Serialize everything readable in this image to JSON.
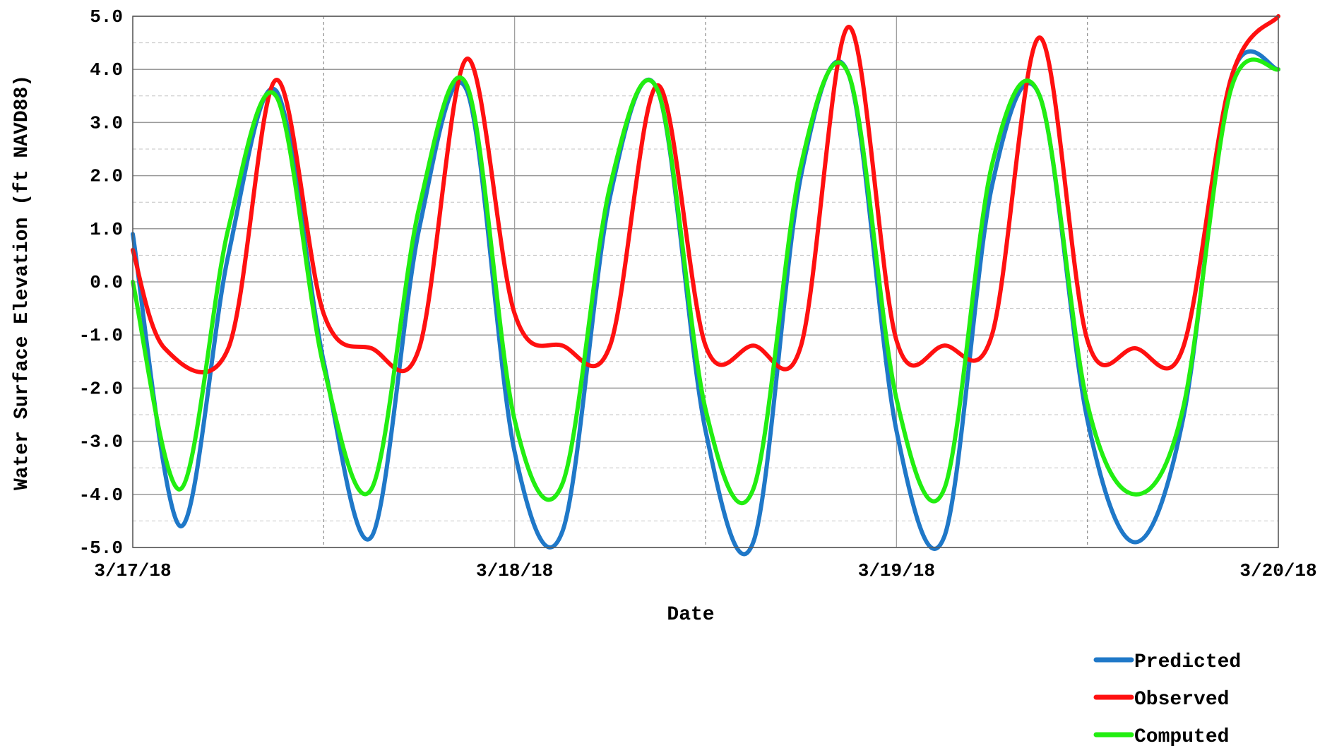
{
  "chart_data": {
    "type": "line",
    "xlabel": "Date",
    "ylabel": "Water Surface Elevation (ft NAVD88)",
    "x_ticks": [
      "3/17/18",
      "3/18/18",
      "3/19/18",
      "3/20/18"
    ],
    "x_range": [
      "3/17/18",
      "3/20/18"
    ],
    "ylim": [
      -5.0,
      5.0
    ],
    "y_ticks": [
      "5.0",
      "4.0",
      "3.0",
      "2.0",
      "1.0",
      "0.0",
      "-1.0",
      "-2.0",
      "-3.0",
      "-4.0",
      "-5.0"
    ],
    "grid": true,
    "legend_position": "bottom-right",
    "series": [
      {
        "name": "Predicted",
        "color": "#1f78c8",
        "x": [
          "3/17/18 00:00",
          "3/17/18 03:00",
          "3/17/18 06:00",
          "3/17/18 09:00",
          "3/17/18 12:00",
          "3/17/18 15:00",
          "3/17/18 18:00",
          "3/17/18 21:00",
          "3/18/18 00:00",
          "3/18/18 03:00",
          "3/18/18 06:00",
          "3/18/18 09:00",
          "3/18/18 12:00",
          "3/18/18 15:00",
          "3/18/18 18:00",
          "3/18/18 21:00",
          "3/19/18 00:00",
          "3/19/18 03:00",
          "3/19/18 06:00",
          "3/19/18 09:00",
          "3/19/18 12:00",
          "3/19/18 15:00",
          "3/19/18 18:00",
          "3/19/18 21:00",
          "3/20/18 00:00"
        ],
        "y": [
          0.9,
          -4.6,
          0.5,
          3.6,
          -1.5,
          -4.8,
          1.0,
          3.6,
          -3.2,
          -4.7,
          1.6,
          3.6,
          -2.8,
          -4.9,
          2.0,
          3.9,
          -2.8,
          -4.8,
          1.8,
          3.5,
          -2.6,
          -4.9,
          -2.6,
          3.8,
          4.0
        ]
      },
      {
        "name": "Observed",
        "color": "#ff1010",
        "x": [
          "3/17/18 00:00",
          "3/17/18 02:00",
          "3/17/18 06:00",
          "3/17/18 09:00",
          "3/17/18 12:00",
          "3/17/18 15:00",
          "3/17/18 18:00",
          "3/17/18 21:00",
          "3/18/18 00:00",
          "3/18/18 03:00",
          "3/18/18 06:00",
          "3/18/18 09:00",
          "3/18/18 12:00",
          "3/18/18 15:00",
          "3/18/18 18:00",
          "3/18/18 21:00",
          "3/19/18 00:00",
          "3/19/18 03:00",
          "3/19/18 06:00",
          "3/19/18 09:00",
          "3/19/18 12:00",
          "3/19/18 15:00",
          "3/19/18 18:00",
          "3/19/18 21:00",
          "3/20/18 00:00"
        ],
        "y": [
          0.6,
          -1.25,
          -1.25,
          3.8,
          -0.6,
          -1.25,
          -1.25,
          4.2,
          -0.6,
          -1.2,
          -1.2,
          3.7,
          -1.2,
          -1.2,
          -1.2,
          4.8,
          -1.1,
          -1.2,
          -1.0,
          4.6,
          -1.1,
          -1.25,
          -1.25,
          3.8,
          5.0
        ]
      },
      {
        "name": "Computed",
        "color": "#22ee11",
        "x": [
          "3/17/18 00:00",
          "3/17/18 03:00",
          "3/17/18 06:00",
          "3/17/18 09:00",
          "3/17/18 12:00",
          "3/17/18 15:00",
          "3/17/18 18:00",
          "3/17/18 21:00",
          "3/18/18 00:00",
          "3/18/18 03:00",
          "3/18/18 06:00",
          "3/18/18 09:00",
          "3/18/18 12:00",
          "3/18/18 15:00",
          "3/18/18 18:00",
          "3/18/18 21:00",
          "3/19/18 00:00",
          "3/19/18 03:00",
          "3/19/18 06:00",
          "3/19/18 09:00",
          "3/19/18 12:00",
          "3/19/18 15:00",
          "3/19/18 18:00",
          "3/19/18 21:00",
          "3/20/18 00:00"
        ],
        "y": [
          0.0,
          -3.9,
          1.0,
          3.5,
          -1.6,
          -3.9,
          1.4,
          3.7,
          -2.6,
          -3.8,
          1.8,
          3.6,
          -2.4,
          -3.9,
          2.2,
          3.9,
          -2.2,
          -3.9,
          2.2,
          3.5,
          -2.3,
          -4.0,
          -2.4,
          3.6,
          4.0
        ]
      }
    ]
  }
}
